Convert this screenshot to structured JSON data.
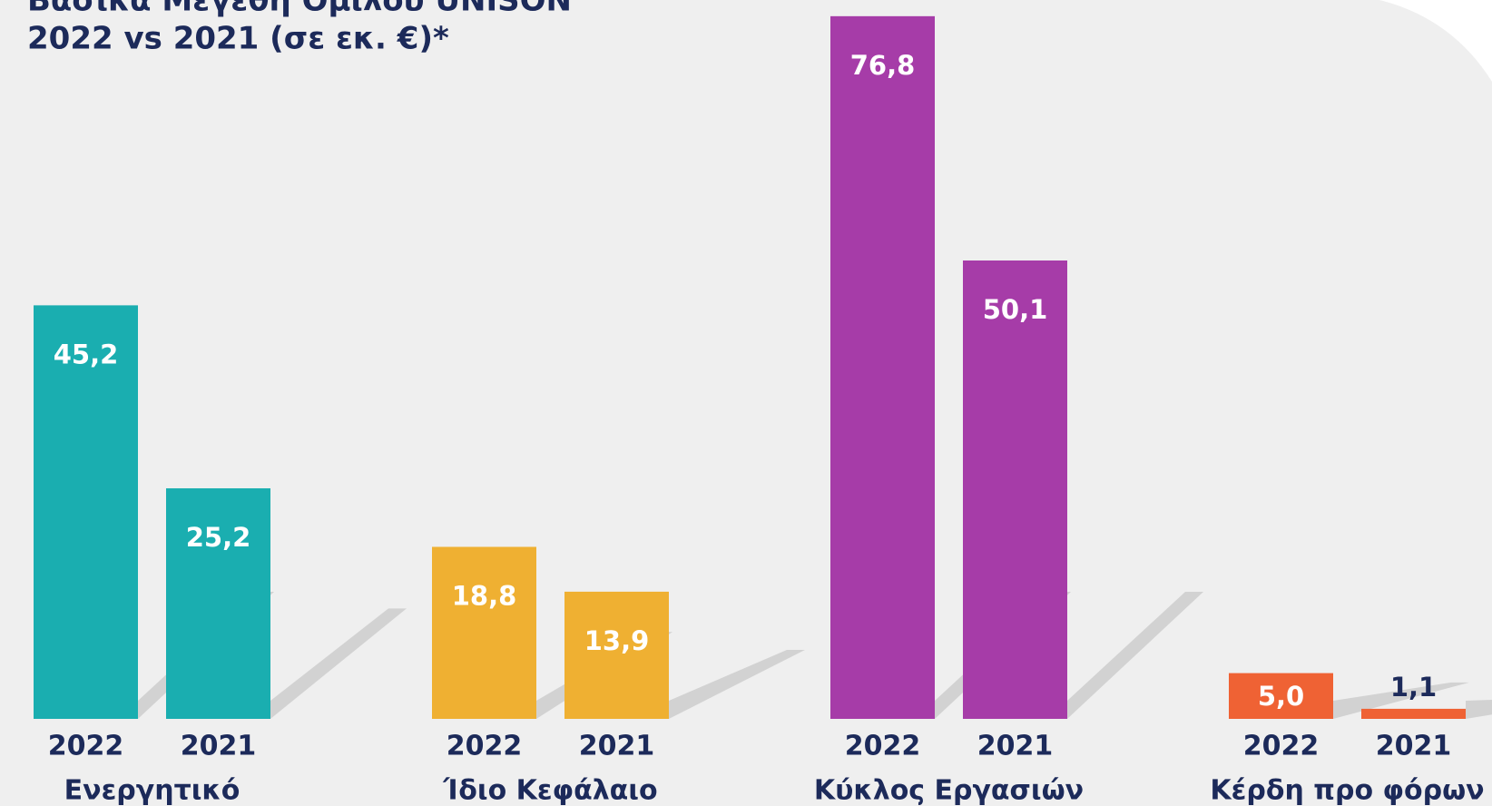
{
  "chart_data": {
    "type": "bar",
    "title": "Βασικά Μεγέθη Ομίλου UNISON",
    "subtitle": "2022 vs 2021 (σε εκ. €)*",
    "categories": [
      "Ενεργητικό",
      "Ίδιο Κεφάλαιο",
      "Κύκλος Εργασιών",
      "Κέρδη προ φόρων"
    ],
    "colors": [
      "#1aaeb0",
      "#efb032",
      "#a63ca8",
      "#ef6234"
    ],
    "series": [
      {
        "name": "2022",
        "values": [
          45.2,
          18.8,
          76.8,
          5
        ],
        "value_labels": [
          "45,2",
          "18,8",
          "76,8",
          "5,0"
        ]
      },
      {
        "name": "2021",
        "values": [
          25.2,
          13.9,
          50.1,
          1.1
        ],
        "value_labels": [
          "25,2",
          "13,9",
          "50,1",
          "1,1"
        ]
      }
    ]
  }
}
